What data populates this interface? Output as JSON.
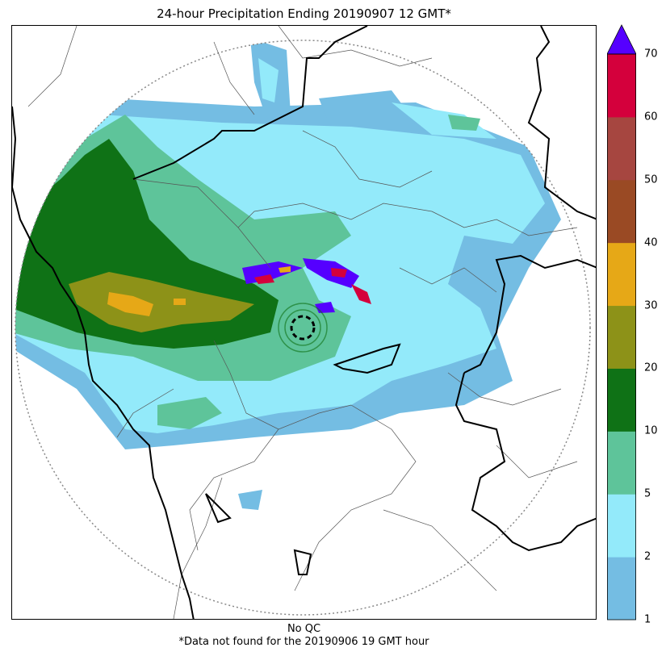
{
  "title": "24-hour Precipitation Ending 20190907 12 GMT*",
  "footer": {
    "qc": "No QC",
    "note": "*Data not found for the 20190906 19 GMT hour"
  },
  "legend": {
    "ticks": [
      "1",
      "2",
      "5",
      "10",
      "20",
      "30",
      "40",
      "50",
      "60",
      "70"
    ],
    "bins": [
      {
        "range": "1-2",
        "color": "#74bde3"
      },
      {
        "range": "2-5",
        "color": "#93eafa"
      },
      {
        "range": "5-10",
        "color": "#5ec49a"
      },
      {
        "range": "10-20",
        "color": "#0f7216"
      },
      {
        "range": "20-30",
        "color": "#8d9218"
      },
      {
        "range": "30-40",
        "color": "#e6a817"
      },
      {
        "range": "40-50",
        "color": "#9a4a24"
      },
      {
        "range": "50-60",
        "color": "#a64640"
      },
      {
        "range": "60-70",
        "color": "#d4003c"
      },
      {
        "range": ">70",
        "color": "#5500ff"
      }
    ]
  }
}
